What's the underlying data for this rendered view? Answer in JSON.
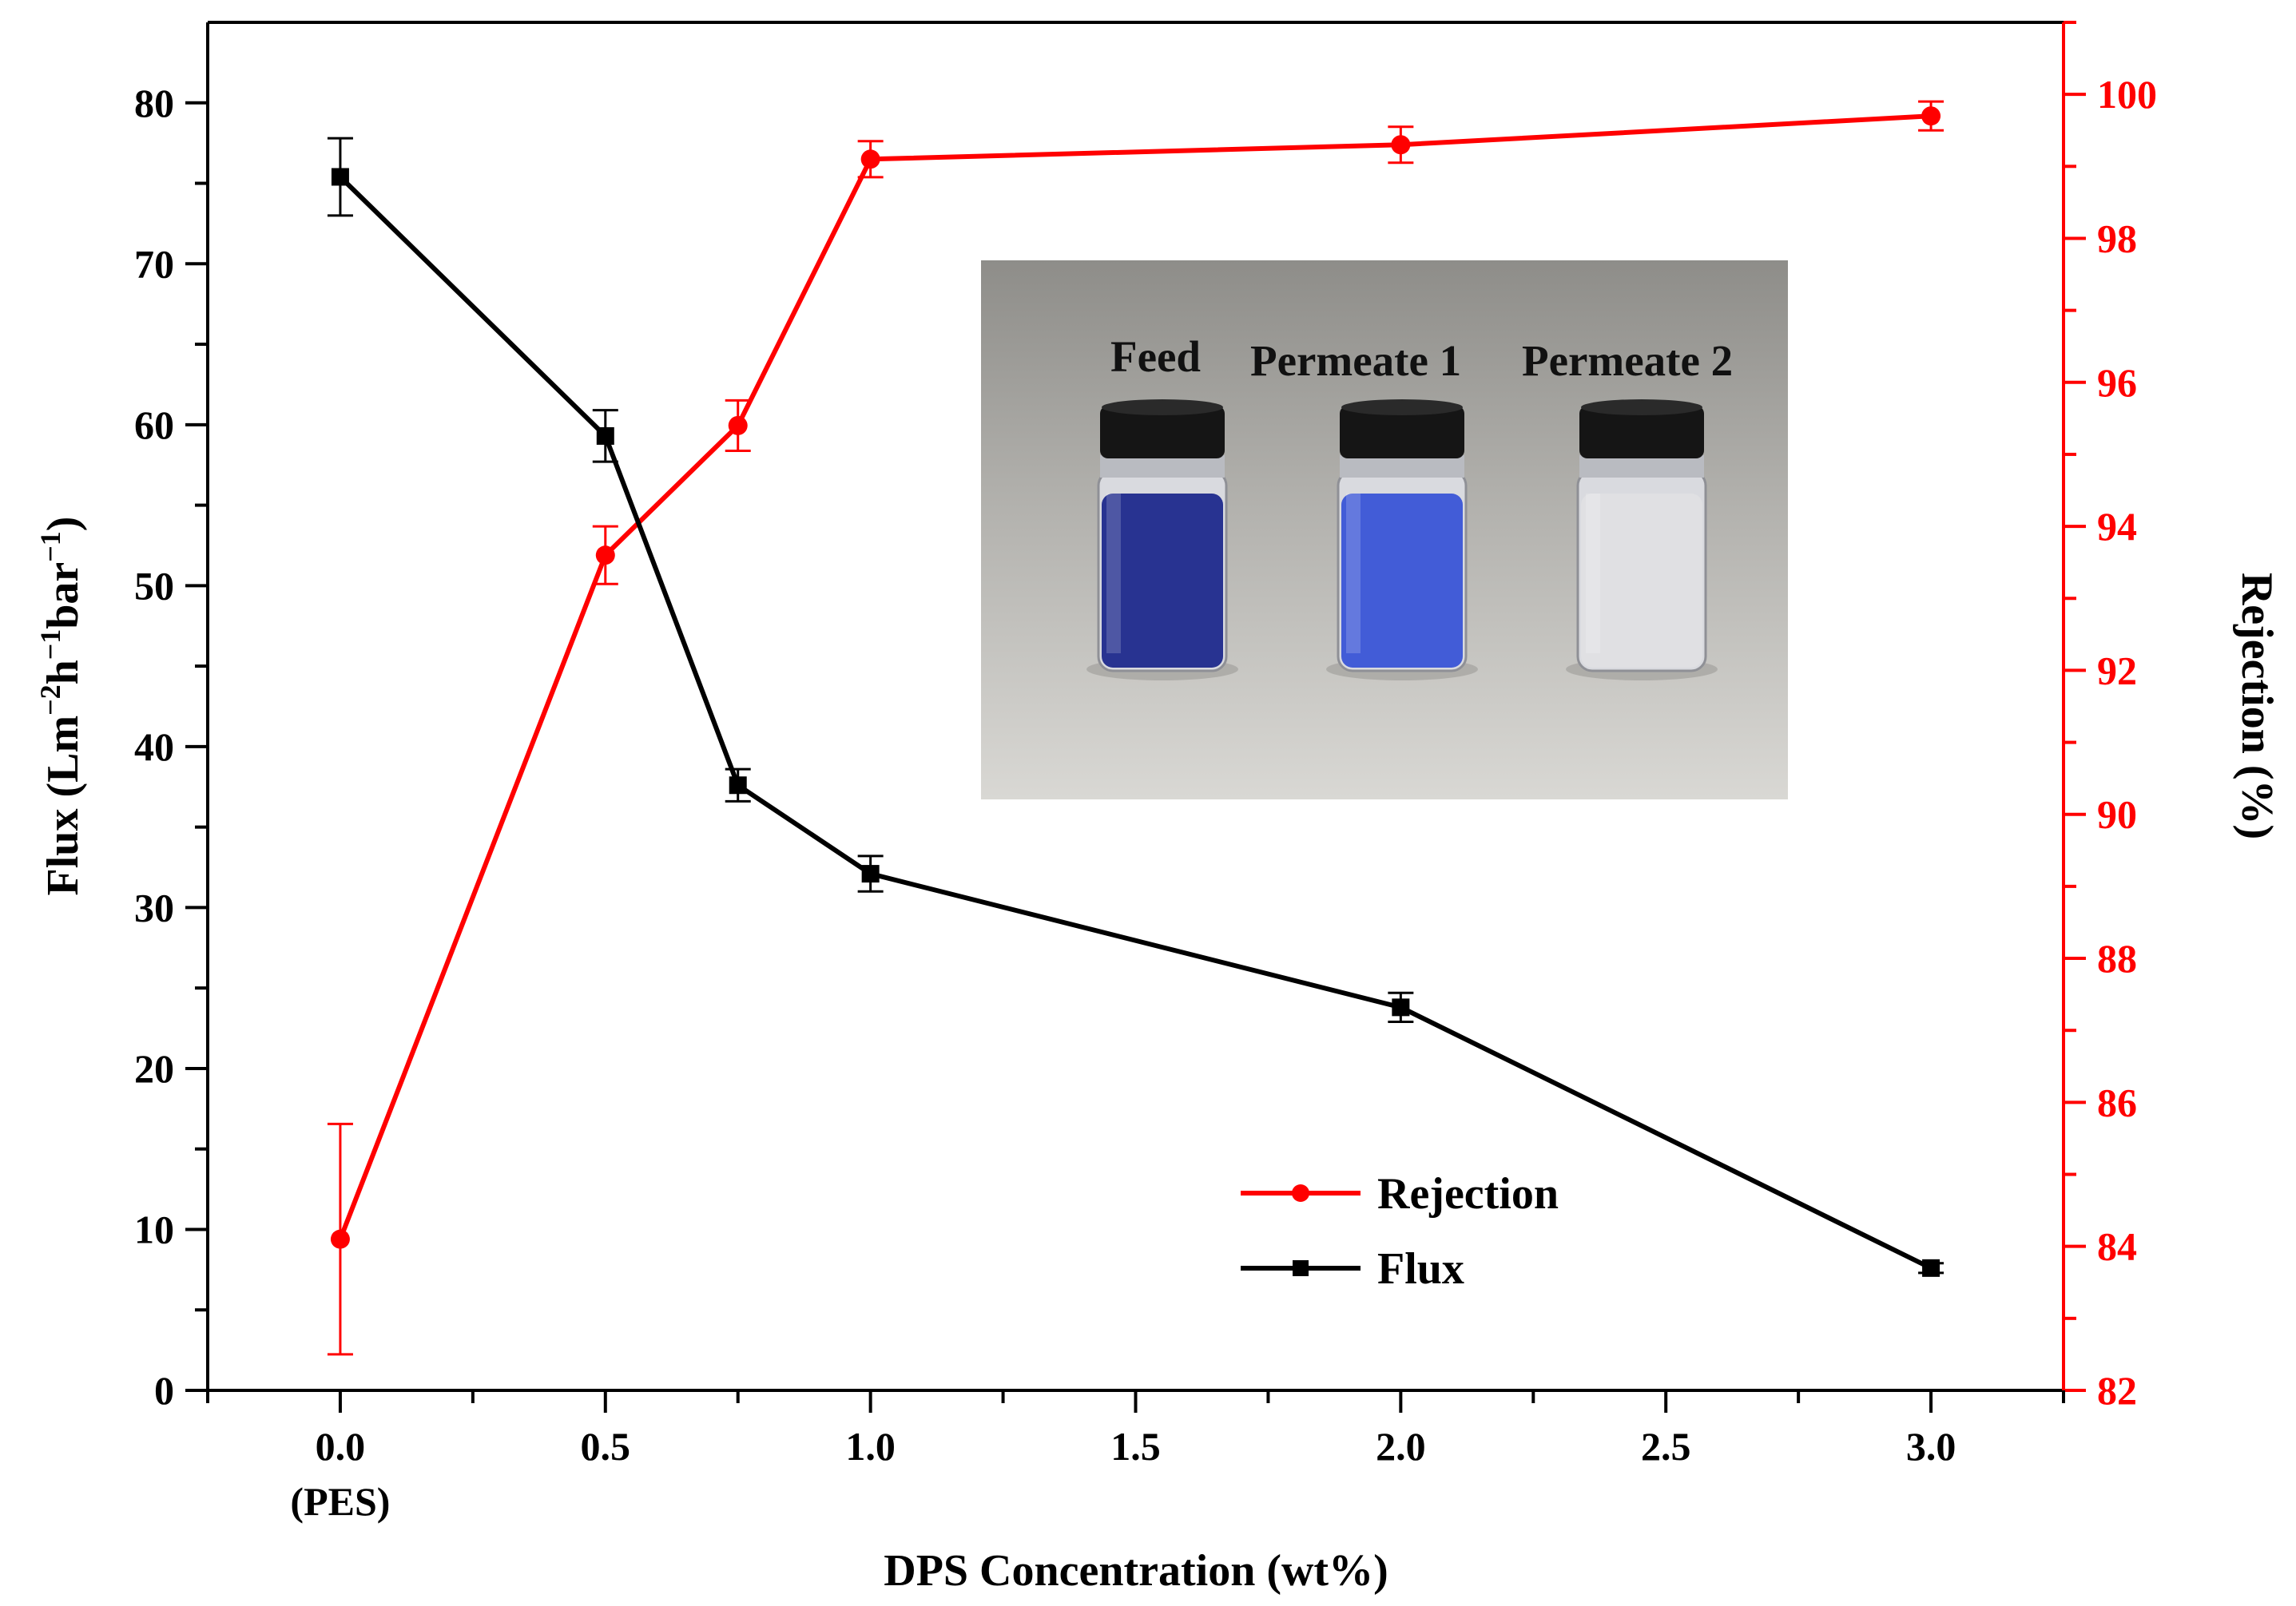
{
  "chart_data": {
    "type": "line",
    "title": "",
    "xlabel": "DPS Concentration (wt%)",
    "x_ticks": [
      "0.0",
      "0.5",
      "1.0",
      "1.5",
      "2.0",
      "2.5",
      "3.0"
    ],
    "x_tick_sublabel": "(PES)",
    "xlim": [
      -0.25,
      3.25
    ],
    "y_left": {
      "label_main": "Flux (Lm",
      "label_sup1": "−2",
      "label_mid1": "h",
      "label_sup2": "−1",
      "label_mid2": "bar",
      "label_sup3": "−1",
      "label_end": ")",
      "ylim": [
        0,
        85
      ],
      "ticks": [
        "0",
        "10",
        "20",
        "30",
        "40",
        "50",
        "60",
        "70",
        "80"
      ],
      "color": "#000000"
    },
    "y_right": {
      "label": "Rejection (%)",
      "ylim": [
        82,
        101
      ],
      "ticks": [
        "82",
        "84",
        "86",
        "88",
        "90",
        "92",
        "94",
        "96",
        "98",
        "100"
      ],
      "color": "#ff0000"
    },
    "series": [
      {
        "name": "Rejection",
        "axis": "right",
        "color": "#ff0000",
        "marker": "circle",
        "x": [
          0,
          0.5,
          0.75,
          1.0,
          2.0,
          3.0
        ],
        "y": [
          84.1,
          93.6,
          95.4,
          99.1,
          99.3,
          99.7
        ],
        "err": [
          1.6,
          0.4,
          0.35,
          0.25,
          0.25,
          0.2
        ]
      },
      {
        "name": "Flux",
        "axis": "left",
        "color": "#000000",
        "marker": "square",
        "x": [
          0,
          0.5,
          0.75,
          1.0,
          2.0,
          3.0
        ],
        "y": [
          75.4,
          59.3,
          37.6,
          32.1,
          23.8,
          7.6
        ],
        "err": [
          2.4,
          1.6,
          1.0,
          1.1,
          0.9,
          0.3
        ]
      }
    ],
    "legend": {
      "position": "lower-right",
      "entries": [
        "Rejection",
        "Flux"
      ]
    },
    "inset_photo": {
      "labels": [
        "Feed",
        "Permeate 1",
        "Permeate 2"
      ],
      "liquid_colors": [
        "#1f2a8c",
        "#3a55d6",
        "#e6e6e6"
      ]
    }
  }
}
